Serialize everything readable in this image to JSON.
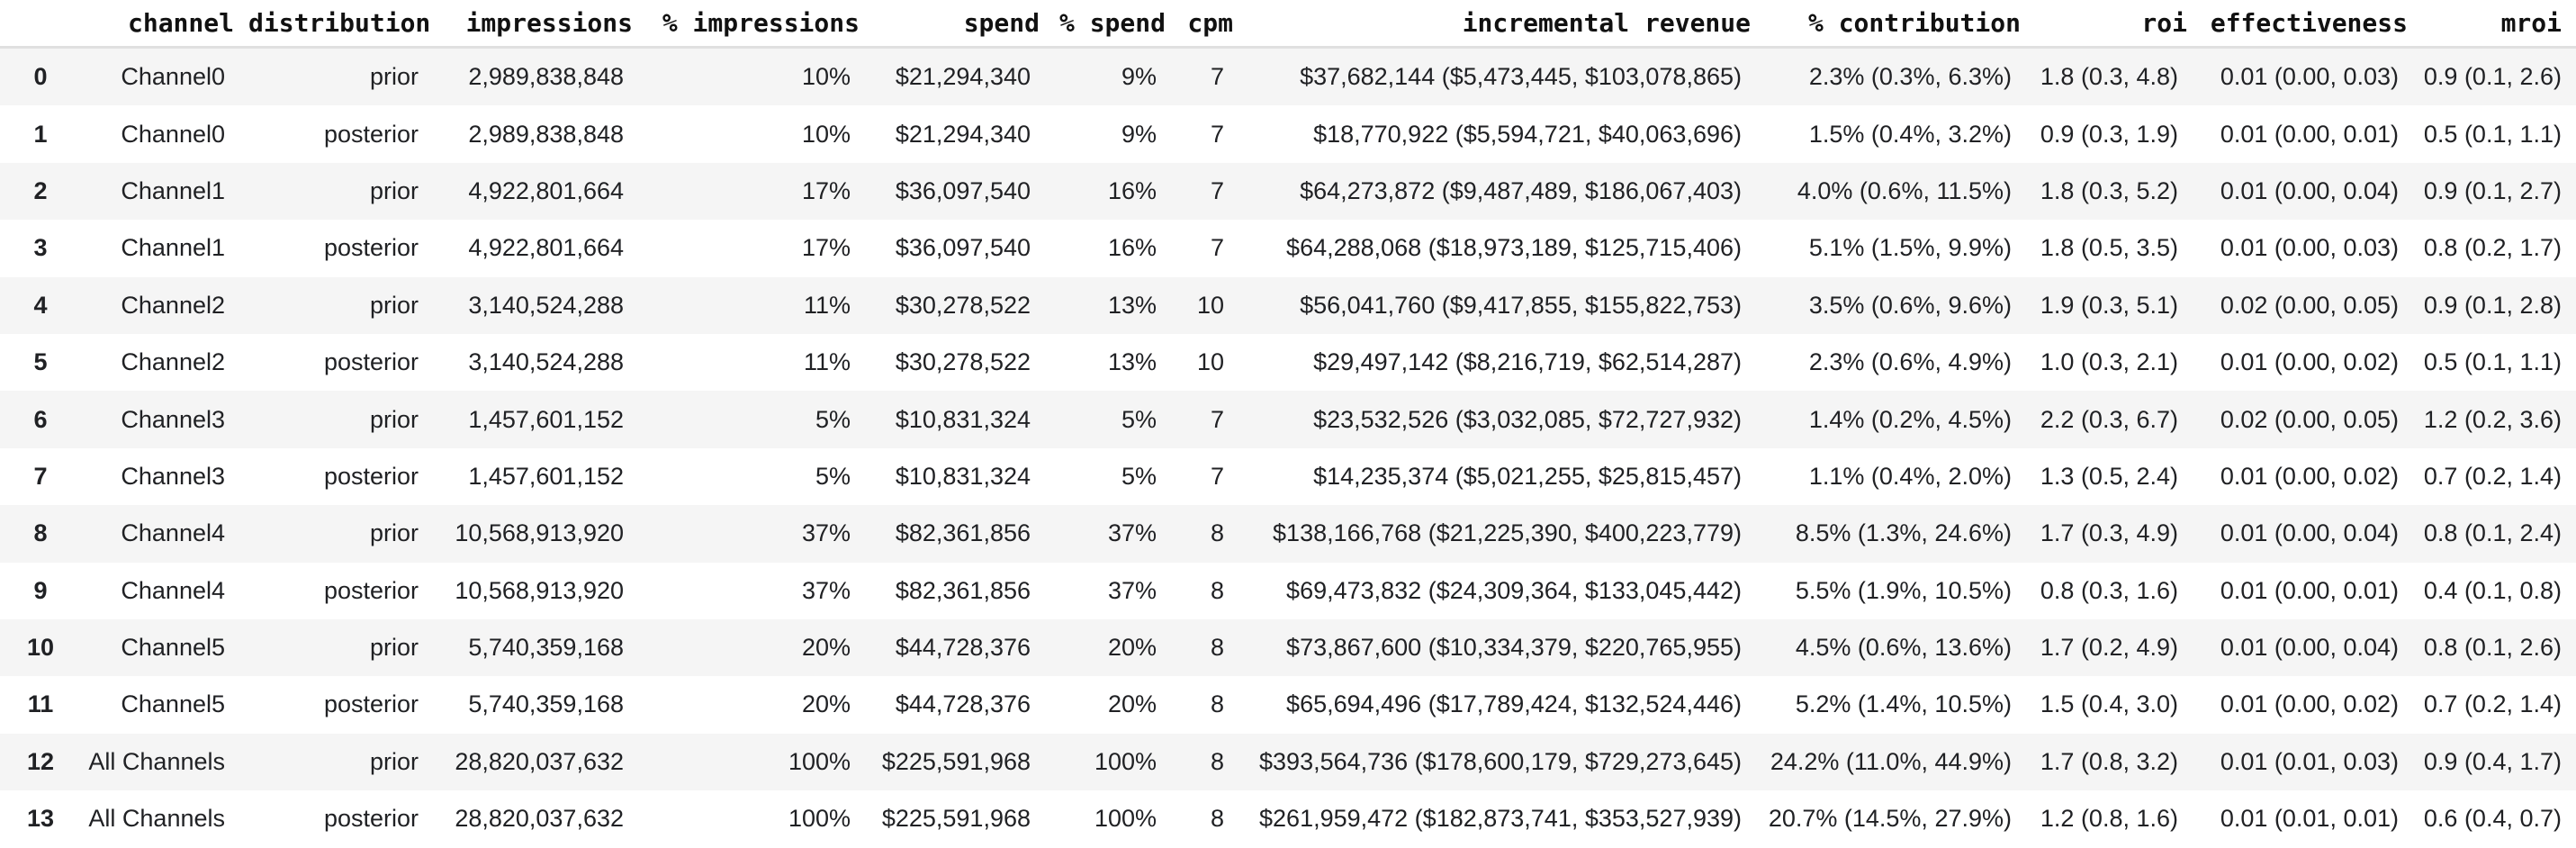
{
  "colors": {
    "background": "#ffffff",
    "stripe_row": "#f5f5f5",
    "header_divider": "#e0e0e0",
    "header_text": "#111111",
    "body_text": "#202124"
  },
  "chart_data": {
    "type": "table",
    "index_header": "",
    "index_labels": [
      "0",
      "1",
      "2",
      "3",
      "4",
      "5",
      "6",
      "7",
      "8",
      "9",
      "10",
      "11",
      "12",
      "13"
    ],
    "columns": [
      "channel",
      "distribution",
      "impressions",
      "% impressions",
      "spend",
      "% spend",
      "cpm",
      "incremental revenue",
      "% contribution",
      "roi",
      "effectiveness",
      "mroi"
    ],
    "rows": [
      [
        "Channel0",
        "prior",
        "2,989,838,848",
        "10%",
        "$21,294,340",
        "9%",
        "7",
        "$37,682,144 ($5,473,445, $103,078,865)",
        "2.3% (0.3%, 6.3%)",
        "1.8 (0.3, 4.8)",
        "0.01 (0.00, 0.03)",
        "0.9 (0.1, 2.6)"
      ],
      [
        "Channel0",
        "posterior",
        "2,989,838,848",
        "10%",
        "$21,294,340",
        "9%",
        "7",
        "$18,770,922 ($5,594,721, $40,063,696)",
        "1.5% (0.4%, 3.2%)",
        "0.9 (0.3, 1.9)",
        "0.01 (0.00, 0.01)",
        "0.5 (0.1, 1.1)"
      ],
      [
        "Channel1",
        "prior",
        "4,922,801,664",
        "17%",
        "$36,097,540",
        "16%",
        "7",
        "$64,273,872 ($9,487,489, $186,067,403)",
        "4.0% (0.6%, 11.5%)",
        "1.8 (0.3, 5.2)",
        "0.01 (0.00, 0.04)",
        "0.9 (0.1, 2.7)"
      ],
      [
        "Channel1",
        "posterior",
        "4,922,801,664",
        "17%",
        "$36,097,540",
        "16%",
        "7",
        "$64,288,068 ($18,973,189, $125,715,406)",
        "5.1% (1.5%, 9.9%)",
        "1.8 (0.5, 3.5)",
        "0.01 (0.00, 0.03)",
        "0.8 (0.2, 1.7)"
      ],
      [
        "Channel2",
        "prior",
        "3,140,524,288",
        "11%",
        "$30,278,522",
        "13%",
        "10",
        "$56,041,760 ($9,417,855, $155,822,753)",
        "3.5% (0.6%, 9.6%)",
        "1.9 (0.3, 5.1)",
        "0.02 (0.00, 0.05)",
        "0.9 (0.1, 2.8)"
      ],
      [
        "Channel2",
        "posterior",
        "3,140,524,288",
        "11%",
        "$30,278,522",
        "13%",
        "10",
        "$29,497,142 ($8,216,719, $62,514,287)",
        "2.3% (0.6%, 4.9%)",
        "1.0 (0.3, 2.1)",
        "0.01 (0.00, 0.02)",
        "0.5 (0.1, 1.1)"
      ],
      [
        "Channel3",
        "prior",
        "1,457,601,152",
        "5%",
        "$10,831,324",
        "5%",
        "7",
        "$23,532,526 ($3,032,085, $72,727,932)",
        "1.4% (0.2%, 4.5%)",
        "2.2 (0.3, 6.7)",
        "0.02 (0.00, 0.05)",
        "1.2 (0.2, 3.6)"
      ],
      [
        "Channel3",
        "posterior",
        "1,457,601,152",
        "5%",
        "$10,831,324",
        "5%",
        "7",
        "$14,235,374 ($5,021,255, $25,815,457)",
        "1.1% (0.4%, 2.0%)",
        "1.3 (0.5, 2.4)",
        "0.01 (0.00, 0.02)",
        "0.7 (0.2, 1.4)"
      ],
      [
        "Channel4",
        "prior",
        "10,568,913,920",
        "37%",
        "$82,361,856",
        "37%",
        "8",
        "$138,166,768 ($21,225,390, $400,223,779)",
        "8.5% (1.3%, 24.6%)",
        "1.7 (0.3, 4.9)",
        "0.01 (0.00, 0.04)",
        "0.8 (0.1, 2.4)"
      ],
      [
        "Channel4",
        "posterior",
        "10,568,913,920",
        "37%",
        "$82,361,856",
        "37%",
        "8",
        "$69,473,832 ($24,309,364, $133,045,442)",
        "5.5% (1.9%, 10.5%)",
        "0.8 (0.3, 1.6)",
        "0.01 (0.00, 0.01)",
        "0.4 (0.1, 0.8)"
      ],
      [
        "Channel5",
        "prior",
        "5,740,359,168",
        "20%",
        "$44,728,376",
        "20%",
        "8",
        "$73,867,600 ($10,334,379, $220,765,955)",
        "4.5% (0.6%, 13.6%)",
        "1.7 (0.2, 4.9)",
        "0.01 (0.00, 0.04)",
        "0.8 (0.1, 2.6)"
      ],
      [
        "Channel5",
        "posterior",
        "5,740,359,168",
        "20%",
        "$44,728,376",
        "20%",
        "8",
        "$65,694,496 ($17,789,424, $132,524,446)",
        "5.2% (1.4%, 10.5%)",
        "1.5 (0.4, 3.0)",
        "0.01 (0.00, 0.02)",
        "0.7 (0.2, 1.4)"
      ],
      [
        "All Channels",
        "prior",
        "28,820,037,632",
        "100%",
        "$225,591,968",
        "100%",
        "8",
        "$393,564,736 ($178,600,179, $729,273,645)",
        "24.2% (11.0%, 44.9%)",
        "1.7 (0.8, 3.2)",
        "0.01 (0.01, 0.03)",
        "0.9 (0.4, 1.7)"
      ],
      [
        "All Channels",
        "posterior",
        "28,820,037,632",
        "100%",
        "$225,591,968",
        "100%",
        "8",
        "$261,959,472 ($182,873,741, $353,527,939)",
        "20.7% (14.5%, 27.9%)",
        "1.2 (0.8, 1.6)",
        "0.01 (0.01, 0.01)",
        "0.6 (0.4, 0.7)"
      ]
    ]
  }
}
